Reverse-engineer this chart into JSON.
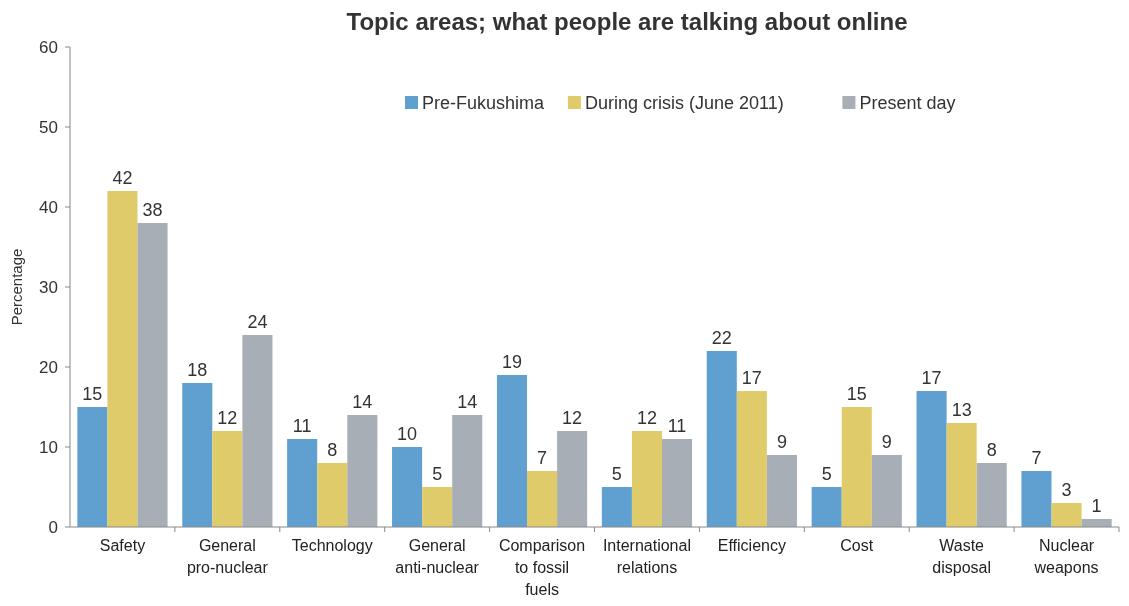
{
  "chart_data": {
    "type": "bar",
    "title": "Topic areas; what people are talking about online",
    "ylabel": "Percentage",
    "categories": [
      "Safety",
      "General pro-nuclear",
      "Technology",
      "General anti-nuclear",
      "Comparison to fossil fuels",
      "International relations",
      "Efficiency",
      "Cost",
      "Waste disposal",
      "Nuclear weapons"
    ],
    "series": [
      {
        "name": "Pre-Fukushima",
        "color": "#5fa0d0",
        "values": [
          15,
          18,
          11,
          10,
          19,
          5,
          22,
          5,
          17,
          7
        ]
      },
      {
        "name": "During crisis (June 2011)",
        "color": "#e0cb6a",
        "values": [
          42,
          12,
          8,
          5,
          7,
          12,
          17,
          15,
          13,
          3
        ]
      },
      {
        "name": "Present day",
        "color": "#a7aeb6",
        "values": [
          38,
          24,
          14,
          14,
          12,
          11,
          9,
          9,
          8,
          1
        ]
      }
    ],
    "ylim": [
      0,
      60
    ],
    "yticks": [
      0,
      10,
      20,
      30,
      40,
      50,
      60
    ],
    "grid": false,
    "legend": "top",
    "data_labels": true
  }
}
